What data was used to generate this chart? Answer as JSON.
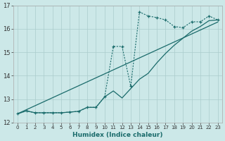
{
  "xlabel": "Humidex (Indice chaleur)",
  "bg_color": "#cce8e8",
  "grid_color": "#aacccc",
  "line_color": "#1a6b6b",
  "xlim": [
    -0.5,
    23.5
  ],
  "ylim": [
    12,
    17
  ],
  "yticks": [
    12,
    13,
    14,
    15,
    16,
    17
  ],
  "xtick_labels": [
    "0",
    "1",
    "2",
    "3",
    "4",
    "5",
    "6",
    "7",
    "8",
    "9",
    "10",
    "11",
    "12",
    "13",
    "14",
    "15",
    "16",
    "17",
    "18",
    "19",
    "20",
    "21",
    "22",
    "23"
  ],
  "line_straight_y": [
    12.38,
    12.55,
    12.72,
    12.89,
    13.06,
    13.23,
    13.4,
    13.57,
    13.74,
    13.91,
    14.08,
    14.25,
    14.42,
    14.59,
    14.76,
    14.93,
    15.1,
    15.27,
    15.44,
    15.61,
    15.78,
    15.95,
    16.12,
    16.29
  ],
  "line_smooth_y": [
    12.38,
    12.5,
    12.42,
    12.42,
    12.42,
    12.42,
    12.45,
    12.48,
    12.65,
    12.65,
    13.1,
    13.35,
    13.05,
    13.45,
    13.85,
    14.1,
    14.55,
    14.95,
    15.3,
    15.6,
    15.9,
    16.1,
    16.35,
    16.38
  ],
  "line_jagged_y": [
    12.38,
    12.5,
    12.42,
    12.42,
    12.42,
    12.42,
    12.45,
    12.48,
    12.65,
    12.65,
    13.1,
    15.25,
    15.25,
    13.55,
    16.72,
    16.55,
    16.48,
    16.38,
    16.1,
    16.05,
    16.3,
    16.3,
    16.55,
    16.38
  ]
}
